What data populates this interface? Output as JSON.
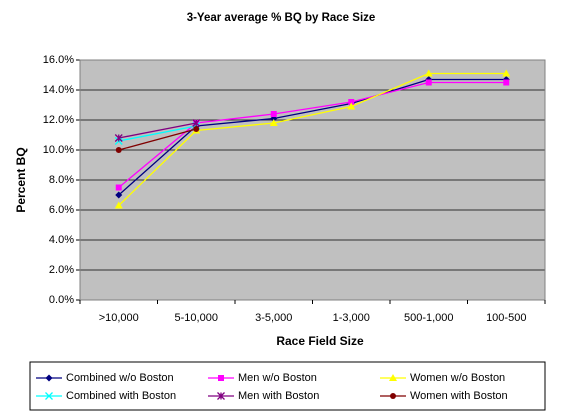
{
  "chart_data": {
    "type": "line",
    "title": "3-Year average % BQ by Race Size",
    "x_label": "Race Field Size",
    "y_label": "Percent BQ",
    "categories": [
      ">10,000",
      "5-10,000",
      "3-5,000",
      "1-3,000",
      "500-1,000",
      "100-500"
    ],
    "ylim": [
      0,
      16
    ],
    "yticks": [
      {
        "value": 0,
        "label": "0.0%"
      },
      {
        "value": 2,
        "label": "2.0%"
      },
      {
        "value": 4,
        "label": "4.0%"
      },
      {
        "value": 6,
        "label": "6.0%"
      },
      {
        "value": 8,
        "label": "8.0%"
      },
      {
        "value": 10,
        "label": "10.0%"
      },
      {
        "value": 12,
        "label": "12.0%"
      },
      {
        "value": 14,
        "label": "14.0%"
      },
      {
        "value": 16,
        "label": "16.0%"
      }
    ],
    "grid": true,
    "legend": "bottom",
    "series": [
      {
        "name": "Combined w/o Boston",
        "color": "#000080",
        "marker": "diamond",
        "values": [
          7.0,
          11.6,
          12.1,
          13.1,
          14.7,
          14.7
        ]
      },
      {
        "name": "Men w/o Boston",
        "color": "#ff00ff",
        "marker": "square",
        "values": [
          7.5,
          11.8,
          12.4,
          13.2,
          14.5,
          14.5
        ]
      },
      {
        "name": "Women w/o Boston",
        "color": "#ffff00",
        "marker": "triangle",
        "values": [
          6.3,
          11.3,
          11.8,
          12.9,
          15.1,
          15.1
        ]
      },
      {
        "name": "Combined with Boston",
        "color": "#00ffff",
        "marker": "x",
        "values": [
          10.6,
          11.6,
          null,
          null,
          null,
          null
        ]
      },
      {
        "name": "Men with Boston",
        "color": "#800080",
        "marker": "star",
        "values": [
          10.8,
          11.8,
          null,
          null,
          null,
          null
        ]
      },
      {
        "name": "Women with Boston",
        "color": "#800000",
        "marker": "circle",
        "values": [
          10.0,
          11.4,
          null,
          null,
          null,
          null
        ]
      }
    ]
  }
}
